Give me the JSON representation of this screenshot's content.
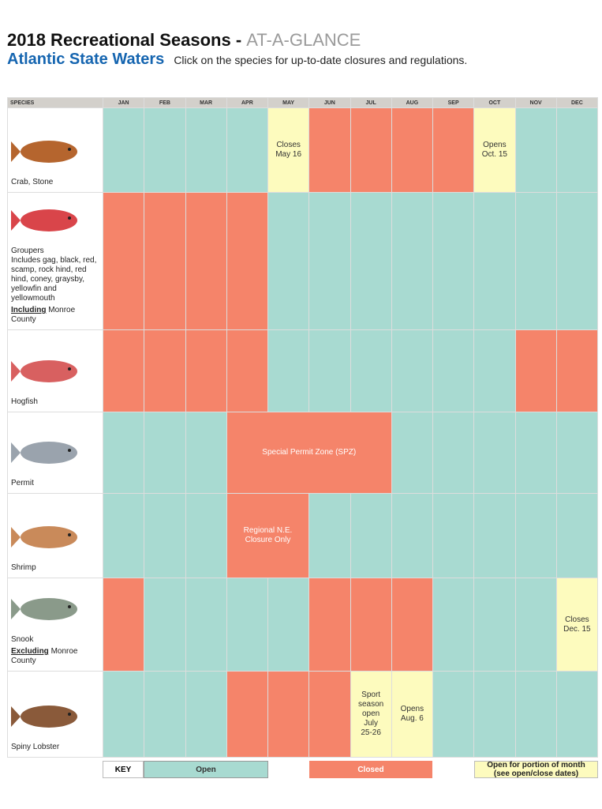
{
  "header": {
    "title": "2018 Recreational Seasons - ",
    "title_accent": "AT-A-GLANCE",
    "subtitle": "Atlantic State Waters",
    "instruction": "Click on the species for up-to-date closures and regulations."
  },
  "table": {
    "species_header": "SPECIES",
    "months": [
      "JAN",
      "FEB",
      "MAR",
      "APR",
      "MAY",
      "JUN",
      "JUL",
      "AUG",
      "SEP",
      "OCT",
      "NOV",
      "DEC"
    ],
    "rows": [
      {
        "species": "Crab, Stone",
        "cells": [
          {
            "status": "open"
          },
          {
            "status": "open"
          },
          {
            "status": "open"
          },
          {
            "status": "open"
          },
          {
            "status": "partial",
            "lines": [
              "Closes",
              "May 16"
            ]
          },
          {
            "status": "closed"
          },
          {
            "status": "closed"
          },
          {
            "status": "closed"
          },
          {
            "status": "closed"
          },
          {
            "status": "partial",
            "lines": [
              "Opens",
              "Oct. 15"
            ]
          },
          {
            "status": "open"
          },
          {
            "status": "open"
          }
        ]
      },
      {
        "species": "Groupers",
        "detail": "Includes gag, black, red, scamp, rock hind, red hind, coney, graysby, yellowfin and yellowmouth",
        "note_emph": "Including",
        "note_rest": "Monroe County",
        "cells": [
          {
            "status": "closed"
          },
          {
            "status": "closed"
          },
          {
            "status": "closed"
          },
          {
            "status": "closed"
          },
          {
            "status": "open"
          },
          {
            "status": "open"
          },
          {
            "status": "open"
          },
          {
            "status": "open"
          },
          {
            "status": "open"
          },
          {
            "status": "open"
          },
          {
            "status": "open"
          },
          {
            "status": "open"
          }
        ]
      },
      {
        "species": "Hogfish",
        "cells": [
          {
            "status": "closed"
          },
          {
            "status": "closed"
          },
          {
            "status": "closed"
          },
          {
            "status": "closed"
          },
          {
            "status": "open"
          },
          {
            "status": "open"
          },
          {
            "status": "open"
          },
          {
            "status": "open"
          },
          {
            "status": "open"
          },
          {
            "status": "open"
          },
          {
            "status": "closed"
          },
          {
            "status": "closed"
          }
        ]
      },
      {
        "species": "Permit",
        "cells": [
          {
            "status": "open"
          },
          {
            "status": "open"
          },
          {
            "status": "open"
          },
          {
            "status": "closed",
            "span": 4,
            "lines": [
              "Special Permit Zone (SPZ)"
            ]
          },
          {
            "status": "open"
          },
          {
            "status": "open"
          },
          {
            "status": "open"
          },
          {
            "status": "open"
          },
          {
            "status": "open"
          }
        ]
      },
      {
        "species": "Shrimp",
        "cells": [
          {
            "status": "open"
          },
          {
            "status": "open"
          },
          {
            "status": "open"
          },
          {
            "status": "closed",
            "span": 2,
            "lines": [
              "Regional N.E.",
              "Closure Only"
            ]
          },
          {
            "status": "open"
          },
          {
            "status": "open"
          },
          {
            "status": "open"
          },
          {
            "status": "open"
          },
          {
            "status": "open"
          },
          {
            "status": "open"
          },
          {
            "status": "open"
          }
        ]
      },
      {
        "species": "Snook",
        "note_emph": "Excluding",
        "note_rest": "Monroe County",
        "cells": [
          {
            "status": "closed"
          },
          {
            "status": "open"
          },
          {
            "status": "open"
          },
          {
            "status": "open"
          },
          {
            "status": "open"
          },
          {
            "status": "closed"
          },
          {
            "status": "closed"
          },
          {
            "status": "closed"
          },
          {
            "status": "open"
          },
          {
            "status": "open"
          },
          {
            "status": "open"
          },
          {
            "status": "partial",
            "lines": [
              "Closes",
              "Dec. 15"
            ]
          }
        ]
      },
      {
        "species": "Spiny Lobster",
        "cells": [
          {
            "status": "open"
          },
          {
            "status": "open"
          },
          {
            "status": "open"
          },
          {
            "status": "closed"
          },
          {
            "status": "closed"
          },
          {
            "status": "closed"
          },
          {
            "status": "partial",
            "lines": [
              "Sport",
              "season",
              "open",
              "July",
              "25-26"
            ]
          },
          {
            "status": "partial",
            "lines": [
              "Opens",
              "Aug. 6"
            ]
          },
          {
            "status": "open"
          },
          {
            "status": "open"
          },
          {
            "status": "open"
          },
          {
            "status": "open"
          }
        ]
      }
    ]
  },
  "key": {
    "title": "KEY",
    "open": "Open",
    "closed": "Closed",
    "partial": [
      "Open for portion of month",
      "(see open/close dates)"
    ]
  }
}
